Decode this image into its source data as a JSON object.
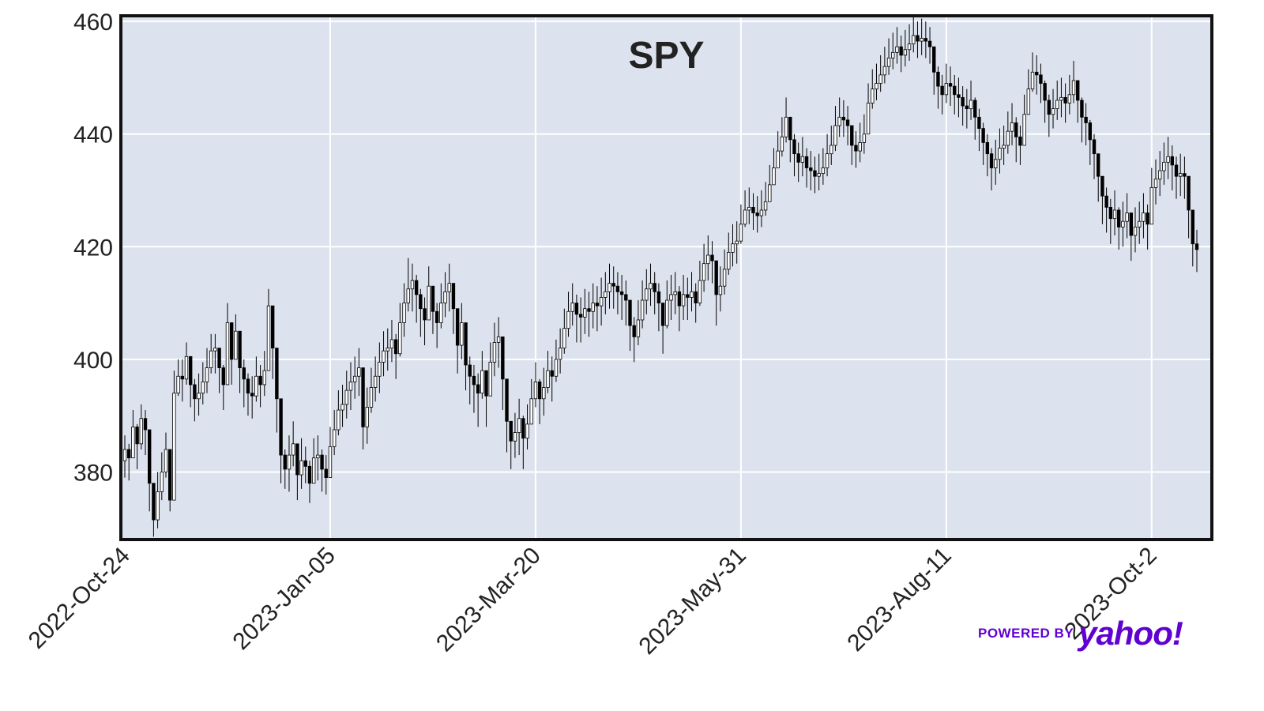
{
  "chart_data": {
    "type": "candlestick",
    "title": "SPY",
    "xlabel": "",
    "ylabel": "",
    "ylim": [
      368,
      461
    ],
    "yticks": [
      380,
      400,
      420,
      440,
      460
    ],
    "xtick_labels": [
      "2022-Oct-24",
      "2023-Jan-05",
      "2023-Mar-20",
      "2023-May-31",
      "2023-Aug-11",
      "2023-Oct-2"
    ],
    "xtick_index": [
      0,
      50,
      100,
      150,
      200,
      250
    ],
    "grid": true,
    "background": "#dde3ee",
    "up_color": "#ffffff",
    "down_color": "#000000",
    "close": [
      384.0,
      382.5,
      388.0,
      385.0,
      389.5,
      387.5,
      378.0,
      371.5,
      376.5,
      380.0,
      384.0,
      375.0,
      394.0,
      397.0,
      396.5,
      400.5,
      395.5,
      393.0,
      394.0,
      396.0,
      398.5,
      401.5,
      402.0,
      398.5,
      395.5,
      406.5,
      400.0,
      405.0,
      398.5,
      396.5,
      394.0,
      393.5,
      397.0,
      395.5,
      398.0,
      409.5,
      402.0,
      393.0,
      383.0,
      380.5,
      383.0,
      385.0,
      379.5,
      382.0,
      381.0,
      378.0,
      382.5,
      383.0,
      380.5,
      379.0,
      384.5,
      387.5,
      391.0,
      392.0,
      394.5,
      396.0,
      397.0,
      398.5,
      388.0,
      391.5,
      395.0,
      397.0,
      399.5,
      401.5,
      402.0,
      403.5,
      401.0,
      406.5,
      410.0,
      412.5,
      414.0,
      411.5,
      409.0,
      407.0,
      413.0,
      408.5,
      406.5,
      410.0,
      412.0,
      413.5,
      409.0,
      402.5,
      406.5,
      399.0,
      397.0,
      395.5,
      394.0,
      398.0,
      393.5,
      399.5,
      403.0,
      404.0,
      396.5,
      389.0,
      385.5,
      387.0,
      389.5,
      386.0,
      388.5,
      393.0,
      396.0,
      393.0,
      395.0,
      398.0,
      397.0,
      400.0,
      402.0,
      405.5,
      408.5,
      410.0,
      408.0,
      407.5,
      409.0,
      408.5,
      410.0,
      409.5,
      411.0,
      412.0,
      413.5,
      413.0,
      412.0,
      411.5,
      410.5,
      406.0,
      404.0,
      407.0,
      410.5,
      412.5,
      413.5,
      412.0,
      410.0,
      406.0,
      410.5,
      411.5,
      412.0,
      409.5,
      411.5,
      411.0,
      412.0,
      410.0,
      414.0,
      417.0,
      418.5,
      417.5,
      411.5,
      413.0,
      416.0,
      419.0,
      420.5,
      421.0,
      424.0,
      426.5,
      427.0,
      426.0,
      425.5,
      426.5,
      428.0,
      431.0,
      434.0,
      437.0,
      439.5,
      443.0,
      439.0,
      436.5,
      435.0,
      436.0,
      434.0,
      433.5,
      432.5,
      433.0,
      434.0,
      436.5,
      438.0,
      441.5,
      443.0,
      442.5,
      441.5,
      438.0,
      437.0,
      438.5,
      440.0,
      445.5,
      448.0,
      449.0,
      450.5,
      452.0,
      453.5,
      454.5,
      455.5,
      454.0,
      455.0,
      456.0,
      457.5,
      456.5,
      457.0,
      456.5,
      455.5,
      451.0,
      448.5,
      447.0,
      449.0,
      448.5,
      447.0,
      446.5,
      445.0,
      444.5,
      446.0,
      443.0,
      441.0,
      438.5,
      436.5,
      434.0,
      435.5,
      437.5,
      438.0,
      440.5,
      442.0,
      439.5,
      438.0,
      443.5,
      448.0,
      451.0,
      450.5,
      449.0,
      446.0,
      443.5,
      444.5,
      446.0,
      446.5,
      445.5,
      447.0,
      449.5,
      446.0,
      443.0,
      442.0,
      439.0,
      436.5,
      432.5,
      429.0,
      427.0,
      425.0,
      426.5,
      423.5,
      424.5,
      426.0,
      422.0,
      423.5,
      424.5,
      426.0,
      424.0,
      430.5,
      432.0,
      433.5,
      435.0,
      436.0,
      434.5,
      432.5,
      433.0,
      432.5,
      426.5,
      420.5,
      419.5
    ],
    "low": [
      379.0,
      378.5,
      383.0,
      380.5,
      384.0,
      383.0,
      373.0,
      368.5,
      370.0,
      375.0,
      379.0,
      373.0,
      386.0,
      393.5,
      392.5,
      395.5,
      391.5,
      389.0,
      390.0,
      392.0,
      394.0,
      397.5,
      397.5,
      394.0,
      391.0,
      400.5,
      395.5,
      400.5,
      394.0,
      391.5,
      390.0,
      389.5,
      392.5,
      391.5,
      393.5,
      398.5,
      396.5,
      387.0,
      378.0,
      377.0,
      376.5,
      381.0,
      375.0,
      377.0,
      378.0,
      374.5,
      378.0,
      378.5,
      376.5,
      376.0,
      379.0,
      383.0,
      386.5,
      388.0,
      389.5,
      391.0,
      393.0,
      393.5,
      384.0,
      385.0,
      390.5,
      392.5,
      394.0,
      397.0,
      398.0,
      399.5,
      396.5,
      400.5,
      404.0,
      408.5,
      408.5,
      406.5,
      404.0,
      402.5,
      407.0,
      404.5,
      402.0,
      405.5,
      407.5,
      408.5,
      404.5,
      397.5,
      400.0,
      394.5,
      392.0,
      390.5,
      388.0,
      393.0,
      388.0,
      394.0,
      397.0,
      398.5,
      391.0,
      383.5,
      380.5,
      382.5,
      383.0,
      380.5,
      384.0,
      388.5,
      391.5,
      388.5,
      390.0,
      394.0,
      392.5,
      396.0,
      397.5,
      401.0,
      404.0,
      406.0,
      403.0,
      403.0,
      404.5,
      404.0,
      405.5,
      405.0,
      406.0,
      408.0,
      409.0,
      409.0,
      408.0,
      407.0,
      406.0,
      401.5,
      399.5,
      402.5,
      405.5,
      408.0,
      409.5,
      408.0,
      405.0,
      401.0,
      405.5,
      407.0,
      408.0,
      405.0,
      407.0,
      407.0,
      408.5,
      406.5,
      409.5,
      412.0,
      414.0,
      413.5,
      406.0,
      408.5,
      411.5,
      415.0,
      416.5,
      417.0,
      420.5,
      423.5,
      424.0,
      423.0,
      422.5,
      423.5,
      425.5,
      428.5,
      431.0,
      434.0,
      436.0,
      438.5,
      435.0,
      432.5,
      431.5,
      432.5,
      430.5,
      430.0,
      429.5,
      430.0,
      431.0,
      432.5,
      434.5,
      437.0,
      439.5,
      439.5,
      438.0,
      434.5,
      434.0,
      435.0,
      436.5,
      441.5,
      444.5,
      446.0,
      447.5,
      449.0,
      450.5,
      451.5,
      452.5,
      451.0,
      452.0,
      453.0,
      454.5,
      453.5,
      454.0,
      453.5,
      452.5,
      447.0,
      444.5,
      443.5,
      445.5,
      445.0,
      443.5,
      443.0,
      441.5,
      441.0,
      442.5,
      439.0,
      437.0,
      434.5,
      432.5,
      430.0,
      431.0,
      433.0,
      434.5,
      436.5,
      438.0,
      435.0,
      434.5,
      439.0,
      443.5,
      447.5,
      447.0,
      445.5,
      442.0,
      439.5,
      441.0,
      442.5,
      443.0,
      442.0,
      443.5,
      445.5,
      442.0,
      438.5,
      438.0,
      434.5,
      432.0,
      428.0,
      424.0,
      422.5,
      420.5,
      422.0,
      419.5,
      420.0,
      421.5,
      417.5,
      419.0,
      420.5,
      421.5,
      419.5,
      425.5,
      427.5,
      429.0,
      431.0,
      432.0,
      430.0,
      428.5,
      429.0,
      428.5,
      421.5,
      416.5,
      415.5
    ],
    "high": [
      386.5,
      385.0,
      391.0,
      388.5,
      392.0,
      391.0,
      382.0,
      375.0,
      380.0,
      383.5,
      387.0,
      380.0,
      398.0,
      400.0,
      400.0,
      403.0,
      399.0,
      396.5,
      397.5,
      399.5,
      402.0,
      404.5,
      404.5,
      401.5,
      399.0,
      410.0,
      404.0,
      408.0,
      402.0,
      400.0,
      397.5,
      397.0,
      400.5,
      399.0,
      401.5,
      412.5,
      406.0,
      396.5,
      387.0,
      384.0,
      386.5,
      389.0,
      383.0,
      386.0,
      384.5,
      382.0,
      386.0,
      386.5,
      384.0,
      383.0,
      388.0,
      391.0,
      394.5,
      395.5,
      398.0,
      399.5,
      400.5,
      402.0,
      392.0,
      395.0,
      398.5,
      400.5,
      403.0,
      405.0,
      405.5,
      407.0,
      404.5,
      410.0,
      413.5,
      418.0,
      417.0,
      415.0,
      412.5,
      411.0,
      416.5,
      412.0,
      410.0,
      413.5,
      415.5,
      417.0,
      412.5,
      406.5,
      410.0,
      402.5,
      400.5,
      399.0,
      397.5,
      401.5,
      397.0,
      403.0,
      406.5,
      407.5,
      400.0,
      393.0,
      389.0,
      390.5,
      393.0,
      390.0,
      392.0,
      396.5,
      399.5,
      396.5,
      398.5,
      401.5,
      400.5,
      403.5,
      405.5,
      409.0,
      412.0,
      413.5,
      411.5,
      411.0,
      412.5,
      412.0,
      413.5,
      413.0,
      414.5,
      415.5,
      417.0,
      416.5,
      415.5,
      415.0,
      414.0,
      409.5,
      407.5,
      410.5,
      414.0,
      416.0,
      417.0,
      415.5,
      413.5,
      409.5,
      414.0,
      415.0,
      415.5,
      413.0,
      415.0,
      414.5,
      415.5,
      413.5,
      417.5,
      420.5,
      422.0,
      421.0,
      415.0,
      416.5,
      419.5,
      422.5,
      424.0,
      424.5,
      427.5,
      430.0,
      430.5,
      429.5,
      429.0,
      430.0,
      431.5,
      434.5,
      437.5,
      440.5,
      443.0,
      446.5,
      442.5,
      440.0,
      438.5,
      439.5,
      437.5,
      437.0,
      436.0,
      436.5,
      437.5,
      440.0,
      441.5,
      445.0,
      446.5,
      446.0,
      445.0,
      441.5,
      440.5,
      442.0,
      443.5,
      449.0,
      451.5,
      452.5,
      454.0,
      455.5,
      457.0,
      458.0,
      459.0,
      457.5,
      458.5,
      459.5,
      461.0,
      460.0,
      460.5,
      460.0,
      459.0,
      454.5,
      452.0,
      450.5,
      452.5,
      452.0,
      450.5,
      450.0,
      448.5,
      448.0,
      449.5,
      446.5,
      444.5,
      442.0,
      440.0,
      437.5,
      439.0,
      441.0,
      441.5,
      444.0,
      445.5,
      443.0,
      441.5,
      447.0,
      451.5,
      454.5,
      454.0,
      452.5,
      449.5,
      447.0,
      448.0,
      449.5,
      450.0,
      449.0,
      450.5,
      453.0,
      449.5,
      446.5,
      445.5,
      442.5,
      440.0,
      436.0,
      432.5,
      430.5,
      428.5,
      430.0,
      427.0,
      428.0,
      429.5,
      425.5,
      427.0,
      428.0,
      429.5,
      427.5,
      434.0,
      435.5,
      437.0,
      438.5,
      439.5,
      438.0,
      436.0,
      436.5,
      436.0,
      430.0,
      424.0,
      423.0
    ],
    "count": 252
  },
  "brand": {
    "powered_by": "POWERED BY",
    "logo": "yahoo!"
  }
}
